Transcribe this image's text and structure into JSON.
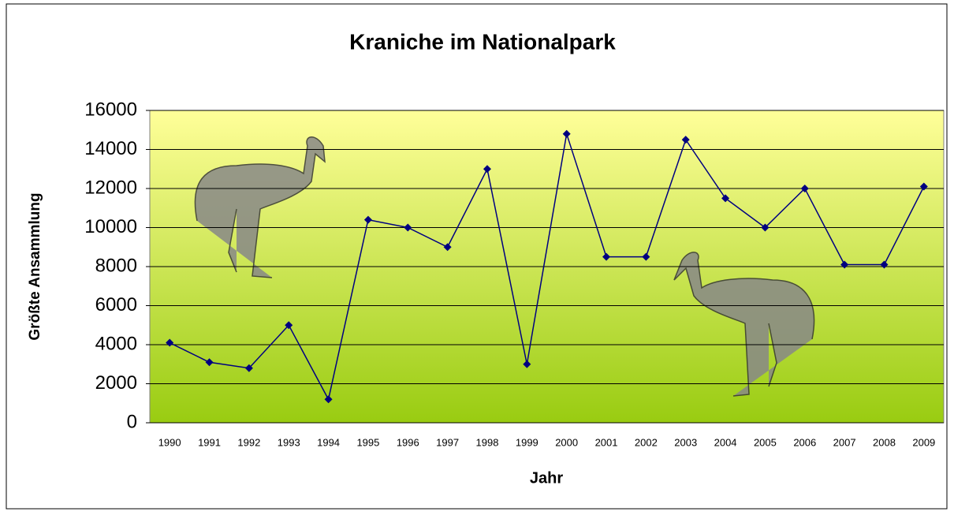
{
  "chart_data": {
    "type": "line",
    "title": "Kraniche im Nationalpark",
    "x_label": "Jahr",
    "y_label": "Größte Ansammlung",
    "categories": [
      "1990",
      "1991",
      "1992",
      "1993",
      "1994",
      "1995",
      "1996",
      "1997",
      "1998",
      "1999",
      "2000",
      "2001",
      "2002",
      "2003",
      "2004",
      "2005",
      "2006",
      "2007",
      "2008",
      "2009"
    ],
    "series": [
      {
        "name": "Größte Ansammlung",
        "color": "#000080",
        "values": [
          4100,
          3100,
          2800,
          5000,
          1200,
          10400,
          10000,
          9000,
          13000,
          3000,
          14800,
          8500,
          8500,
          14500,
          11500,
          10000,
          12000,
          8100,
          8100,
          12100
        ]
      }
    ],
    "ylim": [
      0,
      16000
    ],
    "yticks": [
      0,
      2000,
      4000,
      6000,
      8000,
      10000,
      12000,
      14000,
      16000
    ],
    "grid": true
  }
}
